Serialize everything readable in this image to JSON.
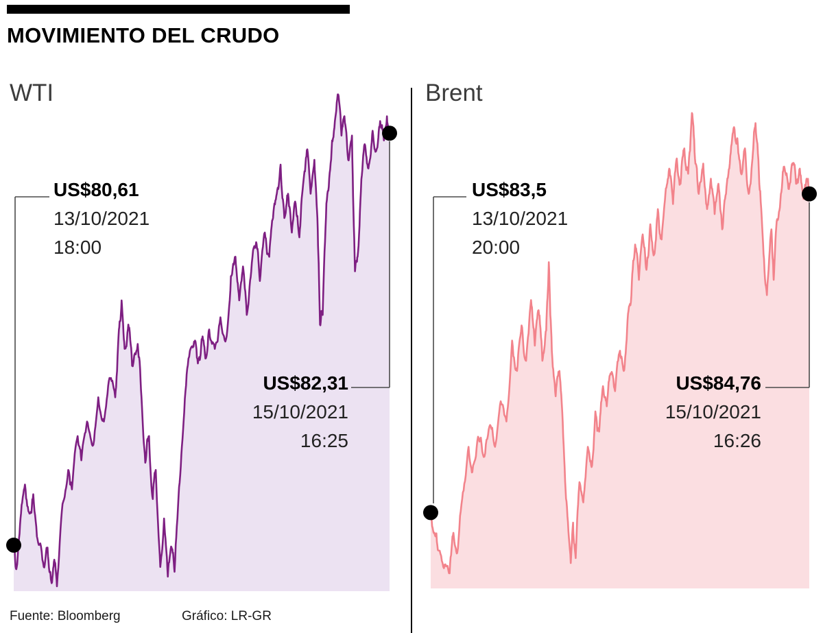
{
  "header": {
    "title": "MOVIMIENTO DEL CRUDO"
  },
  "footer": {
    "source": "Fuente: Bloomberg",
    "credit": "Gráfico: LR-GR"
  },
  "chart_data": [
    {
      "type": "area",
      "name": "WTI",
      "line_color": "#7e1f82",
      "fill_color": "#ece2f2",
      "dot_color": "#000000",
      "ylim": [
        80.42,
        82.52
      ],
      "legend_position": "none",
      "grid": false,
      "start_point": {
        "value": 80.61,
        "price_label": "US$80,61",
        "date": "13/10/2021",
        "time": "18:00"
      },
      "end_point": {
        "value": 82.31,
        "price_label": "US$82,31",
        "date": "15/10/2021",
        "time": "16:25"
      },
      "noise_amp": 0.04,
      "noise_seed": 13,
      "series": [
        [
          0,
          80.61
        ],
        [
          0.008,
          80.52
        ],
        [
          0.018,
          80.72
        ],
        [
          0.03,
          80.86
        ],
        [
          0.042,
          80.74
        ],
        [
          0.052,
          80.82
        ],
        [
          0.065,
          80.62
        ],
        [
          0.08,
          80.52
        ],
        [
          0.09,
          80.6
        ],
        [
          0.1,
          80.46
        ],
        [
          0.108,
          80.55
        ],
        [
          0.115,
          80.44
        ],
        [
          0.13,
          80.78
        ],
        [
          0.145,
          80.92
        ],
        [
          0.155,
          80.84
        ],
        [
          0.17,
          81.06
        ],
        [
          0.18,
          80.96
        ],
        [
          0.195,
          81.12
        ],
        [
          0.21,
          81.02
        ],
        [
          0.225,
          81.22
        ],
        [
          0.24,
          81.12
        ],
        [
          0.255,
          81.3
        ],
        [
          0.27,
          81.22
        ],
        [
          0.28,
          81.5
        ],
        [
          0.287,
          81.62
        ],
        [
          0.295,
          81.42
        ],
        [
          0.305,
          81.52
        ],
        [
          0.315,
          81.35
        ],
        [
          0.33,
          81.44
        ],
        [
          0.34,
          81.22
        ],
        [
          0.35,
          80.95
        ],
        [
          0.36,
          81.06
        ],
        [
          0.37,
          80.8
        ],
        [
          0.378,
          80.92
        ],
        [
          0.39,
          80.52
        ],
        [
          0.4,
          80.72
        ],
        [
          0.41,
          80.48
        ],
        [
          0.42,
          80.6
        ],
        [
          0.428,
          80.5
        ],
        [
          0.44,
          80.85
        ],
        [
          0.452,
          81.12
        ],
        [
          0.465,
          81.38
        ],
        [
          0.48,
          81.45
        ],
        [
          0.49,
          81.36
        ],
        [
          0.5,
          81.46
        ],
        [
          0.51,
          81.38
        ],
        [
          0.52,
          81.5
        ],
        [
          0.535,
          81.42
        ],
        [
          0.55,
          81.55
        ],
        [
          0.565,
          81.46
        ],
        [
          0.578,
          81.72
        ],
        [
          0.59,
          81.8
        ],
        [
          0.6,
          81.62
        ],
        [
          0.61,
          81.76
        ],
        [
          0.62,
          81.56
        ],
        [
          0.632,
          81.74
        ],
        [
          0.645,
          81.86
        ],
        [
          0.655,
          81.7
        ],
        [
          0.668,
          81.9
        ],
        [
          0.68,
          81.8
        ],
        [
          0.69,
          81.96
        ],
        [
          0.7,
          82.06
        ],
        [
          0.71,
          82.18
        ],
        [
          0.72,
          81.96
        ],
        [
          0.73,
          82.06
        ],
        [
          0.74,
          81.9
        ],
        [
          0.75,
          82.02
        ],
        [
          0.76,
          81.88
        ],
        [
          0.77,
          82.1
        ],
        [
          0.78,
          82.24
        ],
        [
          0.79,
          82.06
        ],
        [
          0.8,
          82.2
        ],
        [
          0.808,
          81.96
        ],
        [
          0.815,
          81.52
        ],
        [
          0.822,
          81.56
        ],
        [
          0.832,
          82.02
        ],
        [
          0.842,
          82.16
        ],
        [
          0.852,
          82.32
        ],
        [
          0.862,
          82.47
        ],
        [
          0.872,
          82.3
        ],
        [
          0.88,
          82.38
        ],
        [
          0.89,
          82.2
        ],
        [
          0.9,
          82.3
        ],
        [
          0.908,
          81.74
        ],
        [
          0.915,
          81.8
        ],
        [
          0.925,
          82.12
        ],
        [
          0.935,
          82.26
        ],
        [
          0.945,
          82.18
        ],
        [
          0.955,
          82.32
        ],
        [
          0.965,
          82.24
        ],
        [
          0.975,
          82.36
        ],
        [
          0.985,
          82.28
        ],
        [
          0.993,
          82.38
        ],
        [
          1,
          82.31
        ]
      ]
    },
    {
      "type": "area",
      "name": "Brent",
      "line_color": "#f2838b",
      "fill_color": "#fbdee1",
      "dot_color": "#000000",
      "ylim": [
        83.2,
        85.12
      ],
      "legend_position": "none",
      "grid": false,
      "start_point": {
        "value": 83.5,
        "price_label": "US$83,5",
        "date": "13/10/2021",
        "time": "20:00"
      },
      "end_point": {
        "value": 84.76,
        "price_label": "US$84,76",
        "date": "15/10/2021",
        "time": "16:26"
      },
      "noise_amp": 0.04,
      "noise_seed": 29,
      "series": [
        [
          0,
          83.5
        ],
        [
          0.01,
          83.42
        ],
        [
          0.02,
          83.35
        ],
        [
          0.035,
          83.28
        ],
        [
          0.05,
          83.26
        ],
        [
          0.06,
          83.42
        ],
        [
          0.07,
          83.34
        ],
        [
          0.085,
          83.58
        ],
        [
          0.1,
          83.76
        ],
        [
          0.11,
          83.66
        ],
        [
          0.125,
          83.8
        ],
        [
          0.14,
          83.72
        ],
        [
          0.155,
          83.84
        ],
        [
          0.17,
          83.76
        ],
        [
          0.185,
          83.94
        ],
        [
          0.2,
          83.86
        ],
        [
          0.215,
          84.18
        ],
        [
          0.228,
          84.06
        ],
        [
          0.24,
          84.24
        ],
        [
          0.252,
          84.1
        ],
        [
          0.265,
          84.34
        ],
        [
          0.275,
          84.16
        ],
        [
          0.285,
          84.3
        ],
        [
          0.295,
          84.1
        ],
        [
          0.305,
          84.22
        ],
        [
          0.312,
          84.49
        ],
        [
          0.32,
          84.14
        ],
        [
          0.33,
          83.96
        ],
        [
          0.34,
          84.06
        ],
        [
          0.35,
          83.8
        ],
        [
          0.36,
          83.52
        ],
        [
          0.37,
          83.3
        ],
        [
          0.376,
          83.46
        ],
        [
          0.383,
          83.32
        ],
        [
          0.393,
          83.62
        ],
        [
          0.403,
          83.54
        ],
        [
          0.415,
          83.76
        ],
        [
          0.425,
          83.68
        ],
        [
          0.435,
          83.9
        ],
        [
          0.445,
          83.82
        ],
        [
          0.455,
          84.0
        ],
        [
          0.465,
          83.92
        ],
        [
          0.475,
          84.05
        ],
        [
          0.487,
          83.98
        ],
        [
          0.5,
          84.14
        ],
        [
          0.51,
          84.06
        ],
        [
          0.52,
          84.26
        ],
        [
          0.53,
          84.36
        ],
        [
          0.54,
          84.56
        ],
        [
          0.55,
          84.42
        ],
        [
          0.56,
          84.6
        ],
        [
          0.57,
          84.46
        ],
        [
          0.58,
          84.64
        ],
        [
          0.59,
          84.52
        ],
        [
          0.6,
          84.7
        ],
        [
          0.61,
          84.58
        ],
        [
          0.62,
          84.76
        ],
        [
          0.63,
          84.86
        ],
        [
          0.64,
          84.72
        ],
        [
          0.65,
          84.9
        ],
        [
          0.66,
          84.8
        ],
        [
          0.67,
          84.94
        ],
        [
          0.68,
          84.84
        ],
        [
          0.69,
          85.08
        ],
        [
          0.698,
          84.9
        ],
        [
          0.708,
          84.76
        ],
        [
          0.72,
          84.88
        ],
        [
          0.73,
          84.7
        ],
        [
          0.74,
          84.82
        ],
        [
          0.75,
          84.68
        ],
        [
          0.76,
          84.8
        ],
        [
          0.77,
          84.62
        ],
        [
          0.78,
          84.76
        ],
        [
          0.79,
          84.88
        ],
        [
          0.8,
          85.02
        ],
        [
          0.81,
          84.98
        ],
        [
          0.82,
          84.84
        ],
        [
          0.83,
          84.94
        ],
        [
          0.84,
          84.76
        ],
        [
          0.85,
          84.9
        ],
        [
          0.858,
          85.04
        ],
        [
          0.868,
          84.8
        ],
        [
          0.878,
          84.56
        ],
        [
          0.888,
          84.36
        ],
        [
          0.9,
          84.62
        ],
        [
          0.906,
          84.42
        ],
        [
          0.915,
          84.66
        ],
        [
          0.925,
          84.76
        ],
        [
          0.935,
          84.86
        ],
        [
          0.945,
          84.78
        ],
        [
          0.955,
          84.88
        ],
        [
          0.965,
          84.8
        ],
        [
          0.975,
          84.86
        ],
        [
          0.985,
          84.74
        ],
        [
          0.993,
          84.82
        ],
        [
          1,
          84.76
        ]
      ]
    }
  ]
}
